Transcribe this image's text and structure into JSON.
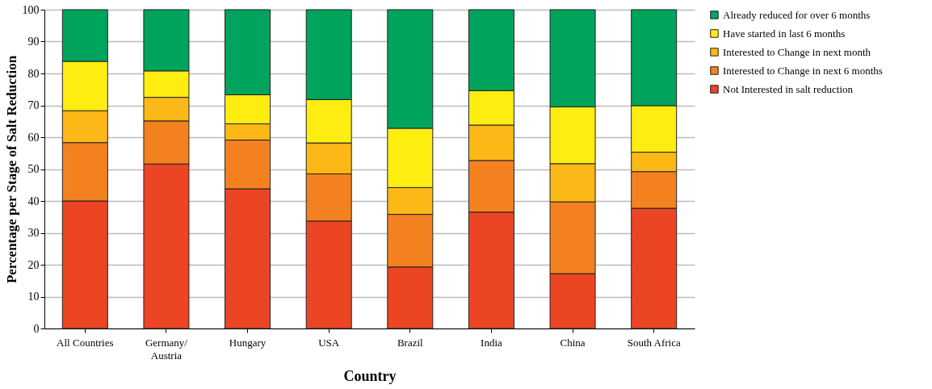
{
  "chart_data": {
    "type": "bar",
    "stacked": true,
    "xlabel": "Country",
    "ylabel": "Percentage per Stage of Salt Reduction",
    "categories": [
      "All Countries",
      "Germany/Austria",
      "Hungary",
      "USA",
      "Brazil",
      "India",
      "China",
      "South Africa"
    ],
    "series": [
      {
        "name": "Not Interested in salt reduction",
        "color": "#ec4524",
        "values": [
          40,
          51.6,
          43.8,
          33.7,
          19.3,
          36.5,
          17.2,
          37.7
        ]
      },
      {
        "name": "Interested to Change in next 6 months",
        "color": "#f48120",
        "values": [
          18.3,
          13.5,
          15.3,
          14.8,
          16.5,
          16.2,
          22.5,
          11.5
        ]
      },
      {
        "name": "Interested to Change in next month",
        "color": "#fbb817",
        "values": [
          10,
          7.4,
          5.1,
          9.7,
          8.4,
          11.1,
          12.0,
          6.1
        ]
      },
      {
        "name": "Have started in last 6 months",
        "color": "#fded10",
        "values": [
          15.5,
          8.3,
          9.1,
          13.6,
          18.6,
          10.8,
          17.8,
          14.6
        ]
      },
      {
        "name": "Already reduced for over 6 months",
        "color": "#00a45c",
        "values": [
          16.2,
          19.2,
          26.7,
          28.2,
          37.2,
          25.4,
          30.5,
          30.1
        ]
      }
    ],
    "ylim": [
      0,
      100
    ],
    "yticks": [
      0,
      10,
      20,
      30,
      40,
      50,
      60,
      70,
      80,
      90,
      100
    ],
    "grid": "y",
    "legend": "right"
  }
}
